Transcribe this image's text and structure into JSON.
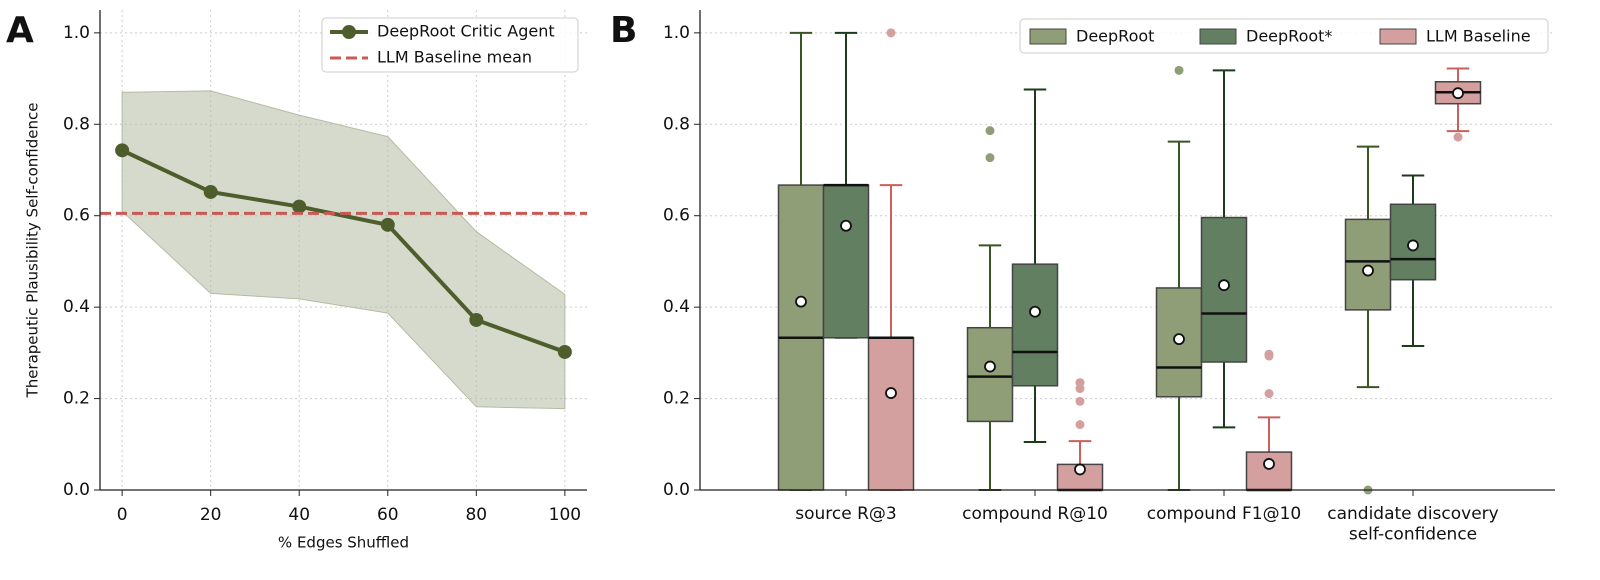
{
  "chart_data": [
    {
      "type": "line",
      "panel_label": "A",
      "xlabel": "% Edges Shuffled",
      "ylabel": "Therapeutic Plausibility Self-confidence",
      "x": [
        0,
        20,
        40,
        60,
        80,
        100
      ],
      "series": [
        {
          "name": "DeepRoot Critic Agent",
          "color": "#4d5e2c",
          "values": [
            0.743,
            0.652,
            0.62,
            0.58,
            0.372,
            0.302
          ],
          "band_upper": [
            0.87,
            0.873,
            0.82,
            0.773,
            0.565,
            0.428
          ],
          "band_lower": [
            0.61,
            0.43,
            0.418,
            0.387,
            0.182,
            0.178
          ],
          "band_color": "#b4bca3"
        }
      ],
      "reference_lines": [
        {
          "name": "LLM Baseline mean",
          "color": "#c85a55",
          "value": 0.605
        }
      ],
      "xlim": [
        -5,
        105
      ],
      "xticks": [
        0,
        20,
        40,
        60,
        80,
        100
      ],
      "ylim": [
        0,
        1.05
      ],
      "yticks": [
        {
          "value": 0,
          "label": "0.0"
        },
        0.2,
        0.4,
        0.6,
        0.8,
        {
          "value": 1,
          "label": "1.0"
        }
      ],
      "grid": true,
      "legend": "upper right"
    },
    {
      "type": "box",
      "panel_label": "B",
      "categories": [
        "source R@3",
        "compound R@10",
        "compound F1@10",
        "candidate discovery\nself-confidence"
      ],
      "series": [
        {
          "name": "DeepRoot",
          "color": "#8f9e77",
          "whisker_color": "#3a5424",
          "boxes": [
            {
              "whislo": 0,
              "q1": 0,
              "med": 0.333,
              "q3": 0.667,
              "whishi": 1.0,
              "mean": 0.412,
              "fliers": []
            },
            {
              "whislo": 0,
              "q1": 0.15,
              "med": 0.248,
              "q3": 0.355,
              "whishi": 0.535,
              "mean": 0.27,
              "fliers": [
                0.727,
                0.786
              ]
            },
            {
              "whislo": 0,
              "q1": 0.204,
              "med": 0.268,
              "q3": 0.442,
              "whishi": 0.762,
              "mean": 0.33,
              "fliers": [
                0.918
              ]
            },
            {
              "whislo": 0.225,
              "q1": 0.394,
              "med": 0.5,
              "q3": 0.592,
              "whishi": 0.751,
              "mean": 0.48,
              "fliers": [
                0.0
              ]
            }
          ]
        },
        {
          "name": "DeepRoot*",
          "color": "#627f62",
          "whisker_color": "#1c3a1c",
          "boxes": [
            {
              "whislo": 0.333,
              "q1": 0.333,
              "med": 0.667,
              "q3": 0.667,
              "whishi": 1.0,
              "mean": 0.578,
              "fliers": []
            },
            {
              "whislo": 0.105,
              "q1": 0.228,
              "med": 0.302,
              "q3": 0.494,
              "whishi": 0.876,
              "mean": 0.39,
              "fliers": []
            },
            {
              "whislo": 0.137,
              "q1": 0.28,
              "med": 0.386,
              "q3": 0.596,
              "whishi": 0.918,
              "mean": 0.448,
              "fliers": []
            },
            {
              "whislo": 0.315,
              "q1": 0.46,
              "med": 0.505,
              "q3": 0.625,
              "whishi": 0.688,
              "mean": 0.535,
              "fliers": []
            }
          ]
        },
        {
          "name": "LLM Baseline",
          "color": "#d4a09f",
          "whisker_color": "#c9605c",
          "boxes": [
            {
              "whislo": 0,
              "q1": 0,
              "med": 0.333,
              "q3": 0.333,
              "whishi": 0.667,
              "mean": 0.212,
              "fliers": [
                1.0
              ]
            },
            {
              "whislo": 0,
              "q1": 0,
              "med": 0,
              "q3": 0.056,
              "whishi": 0.107,
              "mean": 0.045,
              "fliers": [
                0.143,
                0.194,
                0.222,
                0.235
              ]
            },
            {
              "whislo": 0,
              "q1": 0,
              "med": 0,
              "q3": 0.083,
              "whishi": 0.159,
              "mean": 0.057,
              "fliers": [
                0.211,
                0.293,
                0.297
              ]
            },
            {
              "whislo": 0.785,
              "q1": 0.845,
              "med": 0.87,
              "q3": 0.893,
              "whishi": 0.922,
              "mean": 0.868,
              "fliers": [
                0.772
              ]
            }
          ]
        }
      ],
      "ylim": [
        0,
        1.05
      ],
      "yticks": [
        {
          "value": 0,
          "label": "0.0"
        },
        0.2,
        0.4,
        0.6,
        0.8,
        {
          "value": 1,
          "label": "1.0"
        }
      ],
      "grid": true,
      "legend": "upper right"
    }
  ]
}
